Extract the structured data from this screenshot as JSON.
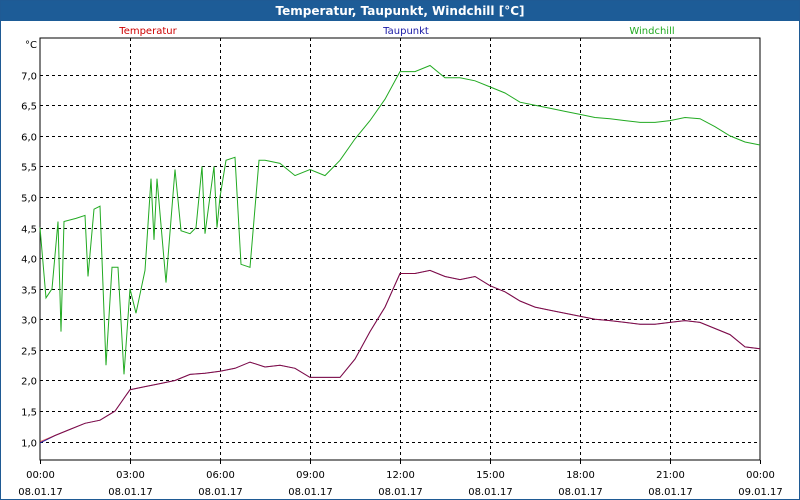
{
  "window": {
    "title": "Temperatur, Taupunkt, Windchill [°C]"
  },
  "colors": {
    "titlebar": "#1d5c97",
    "temperatur": "#cc0000",
    "taupunkt": "#1a1aa6",
    "windchill": "#22aa22",
    "grid": "#000000"
  },
  "chart_data": {
    "type": "line",
    "title": "Temperatur, Taupunkt, Windchill [°C]",
    "ylabel": "°C",
    "xlabel": "",
    "ylim": [
      0.7,
      7.6
    ],
    "xlim": [
      0,
      24
    ],
    "grid": true,
    "legend": "top",
    "y_ticks": [
      1.0,
      1.5,
      2.0,
      2.5,
      3.0,
      3.5,
      4.0,
      4.5,
      5.0,
      5.5,
      6.0,
      6.5,
      7.0
    ],
    "y_tick_labels": [
      "1,0",
      "1,5",
      "2,0",
      "2,5",
      "3,0",
      "3,5",
      "4,0",
      "4,5",
      "5,0",
      "5,5",
      "6,0",
      "6,5",
      "7,0"
    ],
    "x_ticks": [
      0,
      3,
      6,
      9,
      12,
      15,
      18,
      21,
      24
    ],
    "x_tick_labels": [
      [
        "00:00",
        "08.01.17"
      ],
      [
        "03:00",
        "08.01.17"
      ],
      [
        "06:00",
        "08.01.17"
      ],
      [
        "09:00",
        "08.01.17"
      ],
      [
        "12:00",
        "08.01.17"
      ],
      [
        "15:00",
        "08.01.17"
      ],
      [
        "18:00",
        "08.01.17"
      ],
      [
        "21:00",
        "08.01.17"
      ],
      [
        "00:00",
        "09.01.17"
      ]
    ],
    "series": [
      {
        "name": "Temperatur",
        "color": "#cc0000",
        "points": [
          [
            0,
            1.0
          ],
          [
            0.5,
            1.1
          ],
          [
            1.0,
            1.2
          ],
          [
            1.5,
            1.3
          ],
          [
            2.0,
            1.35
          ],
          [
            2.5,
            1.5
          ],
          [
            3.0,
            1.85
          ],
          [
            3.5,
            1.9
          ],
          [
            4.0,
            1.95
          ],
          [
            4.5,
            2.0
          ],
          [
            5.0,
            2.1
          ],
          [
            5.5,
            2.12
          ],
          [
            6.0,
            2.15
          ],
          [
            6.5,
            2.2
          ],
          [
            7.0,
            2.3
          ],
          [
            7.5,
            2.22
          ],
          [
            8.0,
            2.25
          ],
          [
            8.5,
            2.2
          ],
          [
            9.0,
            2.05
          ],
          [
            9.5,
            2.05
          ],
          [
            10.0,
            2.05
          ],
          [
            10.5,
            2.35
          ],
          [
            11.0,
            2.8
          ],
          [
            11.5,
            3.2
          ],
          [
            12.0,
            3.75
          ],
          [
            12.5,
            3.75
          ],
          [
            13.0,
            3.8
          ],
          [
            13.5,
            3.7
          ],
          [
            14.0,
            3.65
          ],
          [
            14.5,
            3.7
          ],
          [
            15.0,
            3.55
          ],
          [
            15.5,
            3.45
          ],
          [
            16.0,
            3.3
          ],
          [
            16.5,
            3.2
          ],
          [
            17.0,
            3.15
          ],
          [
            17.5,
            3.1
          ],
          [
            18.0,
            3.05
          ],
          [
            18.5,
            3.0
          ],
          [
            19.0,
            2.98
          ],
          [
            19.5,
            2.95
          ],
          [
            20.0,
            2.92
          ],
          [
            20.5,
            2.92
          ],
          [
            21.0,
            2.95
          ],
          [
            21.5,
            2.98
          ],
          [
            22.0,
            2.95
          ],
          [
            22.5,
            2.85
          ],
          [
            23.0,
            2.75
          ],
          [
            23.5,
            2.55
          ],
          [
            24.0,
            2.52
          ]
        ]
      },
      {
        "name": "Taupunkt",
        "color": "#1a1aa6",
        "points": [
          [
            0,
            0.98
          ],
          [
            0.5,
            1.1
          ],
          [
            1.0,
            1.2
          ],
          [
            1.5,
            1.3
          ],
          [
            2.0,
            1.35
          ],
          [
            2.5,
            1.5
          ],
          [
            3.0,
            1.85
          ],
          [
            3.5,
            1.9
          ],
          [
            4.0,
            1.95
          ],
          [
            4.5,
            2.0
          ],
          [
            5.0,
            2.1
          ],
          [
            5.5,
            2.12
          ],
          [
            6.0,
            2.15
          ],
          [
            6.5,
            2.2
          ],
          [
            7.0,
            2.3
          ],
          [
            7.5,
            2.22
          ],
          [
            8.0,
            2.25
          ],
          [
            8.5,
            2.2
          ],
          [
            9.0,
            2.05
          ],
          [
            9.5,
            2.05
          ],
          [
            10.0,
            2.05
          ],
          [
            10.5,
            2.35
          ],
          [
            11.0,
            2.8
          ],
          [
            11.5,
            3.2
          ],
          [
            12.0,
            3.75
          ],
          [
            12.5,
            3.75
          ],
          [
            13.0,
            3.8
          ],
          [
            13.5,
            3.7
          ],
          [
            14.0,
            3.65
          ],
          [
            14.5,
            3.7
          ],
          [
            15.0,
            3.55
          ],
          [
            15.5,
            3.45
          ],
          [
            16.0,
            3.3
          ],
          [
            16.5,
            3.2
          ],
          [
            17.0,
            3.15
          ],
          [
            17.5,
            3.1
          ],
          [
            18.0,
            3.05
          ],
          [
            18.5,
            3.0
          ],
          [
            19.0,
            2.98
          ],
          [
            19.5,
            2.95
          ],
          [
            20.0,
            2.92
          ],
          [
            20.5,
            2.92
          ],
          [
            21.0,
            2.95
          ],
          [
            21.5,
            2.98
          ],
          [
            22.0,
            2.95
          ],
          [
            22.5,
            2.85
          ],
          [
            23.0,
            2.75
          ],
          [
            23.5,
            2.55
          ],
          [
            24.0,
            2.52
          ]
        ]
      },
      {
        "name": "Windchill",
        "color": "#22aa22",
        "points": [
          [
            0,
            4.5
          ],
          [
            0.2,
            3.35
          ],
          [
            0.4,
            3.5
          ],
          [
            0.6,
            4.6
          ],
          [
            0.7,
            2.8
          ],
          [
            0.8,
            4.6
          ],
          [
            1.2,
            4.65
          ],
          [
            1.5,
            4.7
          ],
          [
            1.6,
            3.7
          ],
          [
            1.8,
            4.8
          ],
          [
            2.0,
            4.85
          ],
          [
            2.2,
            2.25
          ],
          [
            2.4,
            3.85
          ],
          [
            2.6,
            3.85
          ],
          [
            2.8,
            2.1
          ],
          [
            3.0,
            3.5
          ],
          [
            3.2,
            3.1
          ],
          [
            3.5,
            3.8
          ],
          [
            3.7,
            5.3
          ],
          [
            3.8,
            4.3
          ],
          [
            3.9,
            5.3
          ],
          [
            4.2,
            3.6
          ],
          [
            4.5,
            5.45
          ],
          [
            4.7,
            4.45
          ],
          [
            5.0,
            4.4
          ],
          [
            5.2,
            4.5
          ],
          [
            5.4,
            5.5
          ],
          [
            5.5,
            4.4
          ],
          [
            5.8,
            5.5
          ],
          [
            5.9,
            4.5
          ],
          [
            6.0,
            5.0
          ],
          [
            6.2,
            5.6
          ],
          [
            6.5,
            5.65
          ],
          [
            6.7,
            3.9
          ],
          [
            7.0,
            3.85
          ],
          [
            7.3,
            5.6
          ],
          [
            7.5,
            5.6
          ],
          [
            8.0,
            5.55
          ],
          [
            8.5,
            5.35
          ],
          [
            9.0,
            5.45
          ],
          [
            9.5,
            5.35
          ],
          [
            10.0,
            5.6
          ],
          [
            10.5,
            5.95
          ],
          [
            11.0,
            6.25
          ],
          [
            11.5,
            6.6
          ],
          [
            12.0,
            7.05
          ],
          [
            12.5,
            7.05
          ],
          [
            13.0,
            7.15
          ],
          [
            13.5,
            6.95
          ],
          [
            14.0,
            6.95
          ],
          [
            14.5,
            6.9
          ],
          [
            15.0,
            6.8
          ],
          [
            15.5,
            6.7
          ],
          [
            16.0,
            6.55
          ],
          [
            16.5,
            6.5
          ],
          [
            17.0,
            6.45
          ],
          [
            17.5,
            6.4
          ],
          [
            18.0,
            6.35
          ],
          [
            18.5,
            6.3
          ],
          [
            19.0,
            6.28
          ],
          [
            19.5,
            6.25
          ],
          [
            20.0,
            6.22
          ],
          [
            20.5,
            6.22
          ],
          [
            21.0,
            6.25
          ],
          [
            21.5,
            6.3
          ],
          [
            22.0,
            6.28
          ],
          [
            22.5,
            6.15
          ],
          [
            23.0,
            6.0
          ],
          [
            23.5,
            5.9
          ],
          [
            24.0,
            5.85
          ]
        ]
      }
    ]
  }
}
